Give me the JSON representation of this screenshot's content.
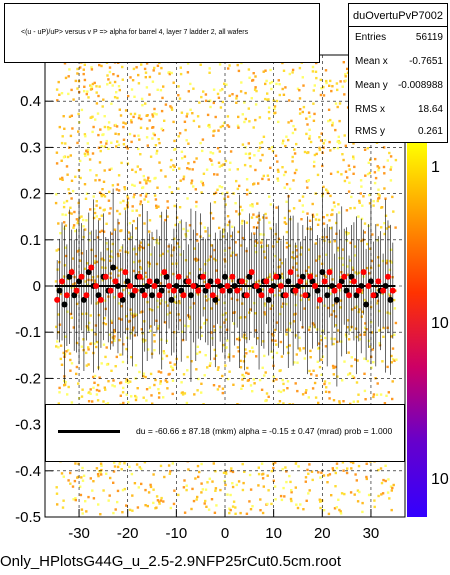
{
  "title": "<(u - uP)/uP> versus   v P => alpha for barrel 4, layer 7 ladder 2, all wafers",
  "stats": {
    "name": "duOvertuPvP7002",
    "rows": [
      {
        "key": "Entries",
        "value": "56119"
      },
      {
        "key": "Mean x",
        "value": "-0.7651"
      },
      {
        "key": "Mean y",
        "value": "-0.008988"
      },
      {
        "key": "RMS x",
        "value": "18.64"
      },
      {
        "key": "RMS y",
        "value": "0.261"
      }
    ]
  },
  "fit": {
    "text": "du =  -60.66 ±  87.18 (mkm) alpha =   -0.15 ±  0.47 (mrad) prob = 1.000",
    "color": "#000000"
  },
  "footer": "Only_HPlotsG44G_u_2.5-2.9NFP25rCut0.5cm.root",
  "chart_data": {
    "type": "scatter",
    "xlim": [
      -37,
      37
    ],
    "ylim": [
      -0.5,
      0.5
    ],
    "xticks": [
      -30,
      -20,
      -10,
      0,
      10,
      20,
      30
    ],
    "xtick_labels": [
      "-30",
      "-20",
      "-10",
      "0",
      "10",
      "20",
      "30"
    ],
    "yticks": [
      -0.5,
      -0.4,
      -0.3,
      -0.2,
      -0.1,
      0,
      0.1,
      0.2,
      0.3,
      0.4
    ],
    "ytick_labels": [
      "-0.5",
      "-0.4",
      "-0.3",
      "-0.2",
      "-0.1",
      "0",
      "0.1",
      "0.2",
      "0.3",
      "0.4"
    ],
    "grid": true,
    "heatmap_colors": [
      "#ffff66",
      "#ffdd33",
      "#ffbb22",
      "#ff9922"
    ],
    "palette_colors": [
      "#ffff00",
      "#ff9900",
      "#ff3300",
      "#cc0066",
      "#6600cc",
      "#3300ff"
    ],
    "palette_labels": [
      "1",
      "10",
      "10"
    ],
    "series": [
      {
        "marker_color": "#000000",
        "points": [
          {
            "x": -34,
            "y": -0.01
          },
          {
            "x": -33,
            "y": -0.04
          },
          {
            "x": -32,
            "y": 0.02
          },
          {
            "x": -31,
            "y": -0.02
          },
          {
            "x": -30,
            "y": 0.01
          },
          {
            "x": -29,
            "y": -0.03
          },
          {
            "x": -28,
            "y": 0.03
          },
          {
            "x": -27,
            "y": 0.0
          },
          {
            "x": -26,
            "y": -0.02
          },
          {
            "x": -25,
            "y": 0.02
          },
          {
            "x": -24,
            "y": -0.01
          },
          {
            "x": -23,
            "y": 0.04
          },
          {
            "x": -22,
            "y": 0.0
          },
          {
            "x": -21,
            "y": -0.03
          },
          {
            "x": -20,
            "y": 0.01
          },
          {
            "x": -19,
            "y": -0.02
          },
          {
            "x": -18,
            "y": 0.02
          },
          {
            "x": -17,
            "y": -0.01
          },
          {
            "x": -16,
            "y": 0.0
          },
          {
            "x": -15,
            "y": -0.02
          },
          {
            "x": -14,
            "y": 0.01
          },
          {
            "x": -13,
            "y": -0.01
          },
          {
            "x": -12,
            "y": 0.02
          },
          {
            "x": -11,
            "y": -0.03
          },
          {
            "x": -10,
            "y": 0.0
          },
          {
            "x": -9,
            "y": -0.01
          },
          {
            "x": -8,
            "y": 0.01
          },
          {
            "x": -7,
            "y": -0.02
          },
          {
            "x": -6,
            "y": 0.0
          },
          {
            "x": -5,
            "y": 0.02
          },
          {
            "x": -4,
            "y": -0.01
          },
          {
            "x": -3,
            "y": 0.01
          },
          {
            "x": -2,
            "y": -0.03
          },
          {
            "x": -1,
            "y": 0.0
          },
          {
            "x": 0,
            "y": 0.02
          },
          {
            "x": 1,
            "y": -0.01
          },
          {
            "x": 2,
            "y": 0.0
          },
          {
            "x": 3,
            "y": 0.01
          },
          {
            "x": 4,
            "y": -0.02
          },
          {
            "x": 5,
            "y": 0.02
          },
          {
            "x": 6,
            "y": 0.0
          },
          {
            "x": 7,
            "y": -0.01
          },
          {
            "x": 8,
            "y": 0.01
          },
          {
            "x": 9,
            "y": -0.03
          },
          {
            "x": 10,
            "y": 0.0
          },
          {
            "x": 11,
            "y": 0.02
          },
          {
            "x": 12,
            "y": -0.02
          },
          {
            "x": 13,
            "y": 0.01
          },
          {
            "x": 14,
            "y": -0.01
          },
          {
            "x": 15,
            "y": 0.0
          },
          {
            "x": 16,
            "y": 0.02
          },
          {
            "x": 17,
            "y": -0.02
          },
          {
            "x": 18,
            "y": 0.01
          },
          {
            "x": 19,
            "y": -0.01
          },
          {
            "x": 20,
            "y": 0.03
          },
          {
            "x": 21,
            "y": -0.02
          },
          {
            "x": 22,
            "y": 0.0
          },
          {
            "x": 23,
            "y": -0.03
          },
          {
            "x": 24,
            "y": 0.01
          },
          {
            "x": 25,
            "y": -0.01
          },
          {
            "x": 26,
            "y": 0.02
          },
          {
            "x": 27,
            "y": -0.02
          },
          {
            "x": 28,
            "y": 0.0
          },
          {
            "x": 29,
            "y": -0.04
          },
          {
            "x": 30,
            "y": 0.01
          },
          {
            "x": 31,
            "y": -0.02
          },
          {
            "x": 32,
            "y": -0.01
          },
          {
            "x": 33,
            "y": 0.0
          },
          {
            "x": 34,
            "y": -0.03
          }
        ],
        "error": 0.14
      },
      {
        "marker_color": "#ff0000",
        "points": [
          {
            "x": -34.5,
            "y": -0.03
          },
          {
            "x": -33.5,
            "y": 0.01
          },
          {
            "x": -32.5,
            "y": -0.02
          },
          {
            "x": -31.5,
            "y": 0.03
          },
          {
            "x": -30.5,
            "y": -0.01
          },
          {
            "x": -29.5,
            "y": 0.02
          },
          {
            "x": -28.5,
            "y": -0.02
          },
          {
            "x": -27.5,
            "y": 0.04
          },
          {
            "x": -26.5,
            "y": 0.0
          },
          {
            "x": -25.5,
            "y": -0.03
          },
          {
            "x": -24.5,
            "y": 0.02
          },
          {
            "x": -23.5,
            "y": -0.01
          },
          {
            "x": -22.5,
            "y": 0.01
          },
          {
            "x": -21.5,
            "y": -0.02
          },
          {
            "x": -20.5,
            "y": 0.03
          },
          {
            "x": -19.5,
            "y": 0.0
          },
          {
            "x": -18.5,
            "y": -0.01
          },
          {
            "x": -17.5,
            "y": 0.02
          },
          {
            "x": -16.5,
            "y": -0.02
          },
          {
            "x": -15.5,
            "y": 0.01
          },
          {
            "x": -14.5,
            "y": 0.0
          },
          {
            "x": -13.5,
            "y": -0.02
          },
          {
            "x": -12.5,
            "y": 0.03
          },
          {
            "x": -11.5,
            "y": 0.0
          },
          {
            "x": -10.5,
            "y": -0.01
          },
          {
            "x": -9.5,
            "y": 0.02
          },
          {
            "x": -8.5,
            "y": -0.02
          },
          {
            "x": -7.5,
            "y": 0.01
          },
          {
            "x": -6.5,
            "y": 0.0
          },
          {
            "x": -5.5,
            "y": -0.01
          },
          {
            "x": -4.5,
            "y": 0.02
          },
          {
            "x": -3.5,
            "y": 0.0
          },
          {
            "x": -2.5,
            "y": -0.02
          },
          {
            "x": -1.5,
            "y": 0.01
          },
          {
            "x": -0.5,
            "y": -0.01
          },
          {
            "x": 0.5,
            "y": 0.0
          },
          {
            "x": 1.5,
            "y": 0.02
          },
          {
            "x": 2.5,
            "y": -0.01
          },
          {
            "x": 3.5,
            "y": 0.01
          },
          {
            "x": 4.5,
            "y": -0.02
          },
          {
            "x": 5.5,
            "y": 0.03
          },
          {
            "x": 6.5,
            "y": 0.0
          },
          {
            "x": 7.5,
            "y": -0.02
          },
          {
            "x": 8.5,
            "y": 0.01
          },
          {
            "x": 9.5,
            "y": -0.01
          },
          {
            "x": 10.5,
            "y": 0.02
          },
          {
            "x": 11.5,
            "y": 0.0
          },
          {
            "x": 12.5,
            "y": -0.02
          },
          {
            "x": 13.5,
            "y": 0.03
          },
          {
            "x": 14.5,
            "y": -0.01
          },
          {
            "x": 15.5,
            "y": 0.01
          },
          {
            "x": 16.5,
            "y": -0.02
          },
          {
            "x": 17.5,
            "y": 0.02
          },
          {
            "x": 18.5,
            "y": 0.0
          },
          {
            "x": 19.5,
            "y": -0.03
          },
          {
            "x": 20.5,
            "y": 0.01
          },
          {
            "x": 21.5,
            "y": 0.03
          },
          {
            "x": 22.5,
            "y": -0.01
          },
          {
            "x": 23.5,
            "y": 0.0
          },
          {
            "x": 24.5,
            "y": 0.02
          },
          {
            "x": 25.5,
            "y": -0.02
          },
          {
            "x": 26.5,
            "y": 0.01
          },
          {
            "x": 27.5,
            "y": -0.01
          },
          {
            "x": 28.5,
            "y": 0.03
          },
          {
            "x": 29.5,
            "y": 0.0
          },
          {
            "x": 30.5,
            "y": -0.02
          },
          {
            "x": 31.5,
            "y": 0.01
          },
          {
            "x": 32.5,
            "y": -0.01
          },
          {
            "x": 33.5,
            "y": 0.02
          },
          {
            "x": 34.5,
            "y": -0.01
          }
        ],
        "error": 0.1
      }
    ],
    "fit_line": {
      "x": [
        -35,
        35
      ],
      "y": [
        0.0,
        0.0
      ]
    }
  }
}
